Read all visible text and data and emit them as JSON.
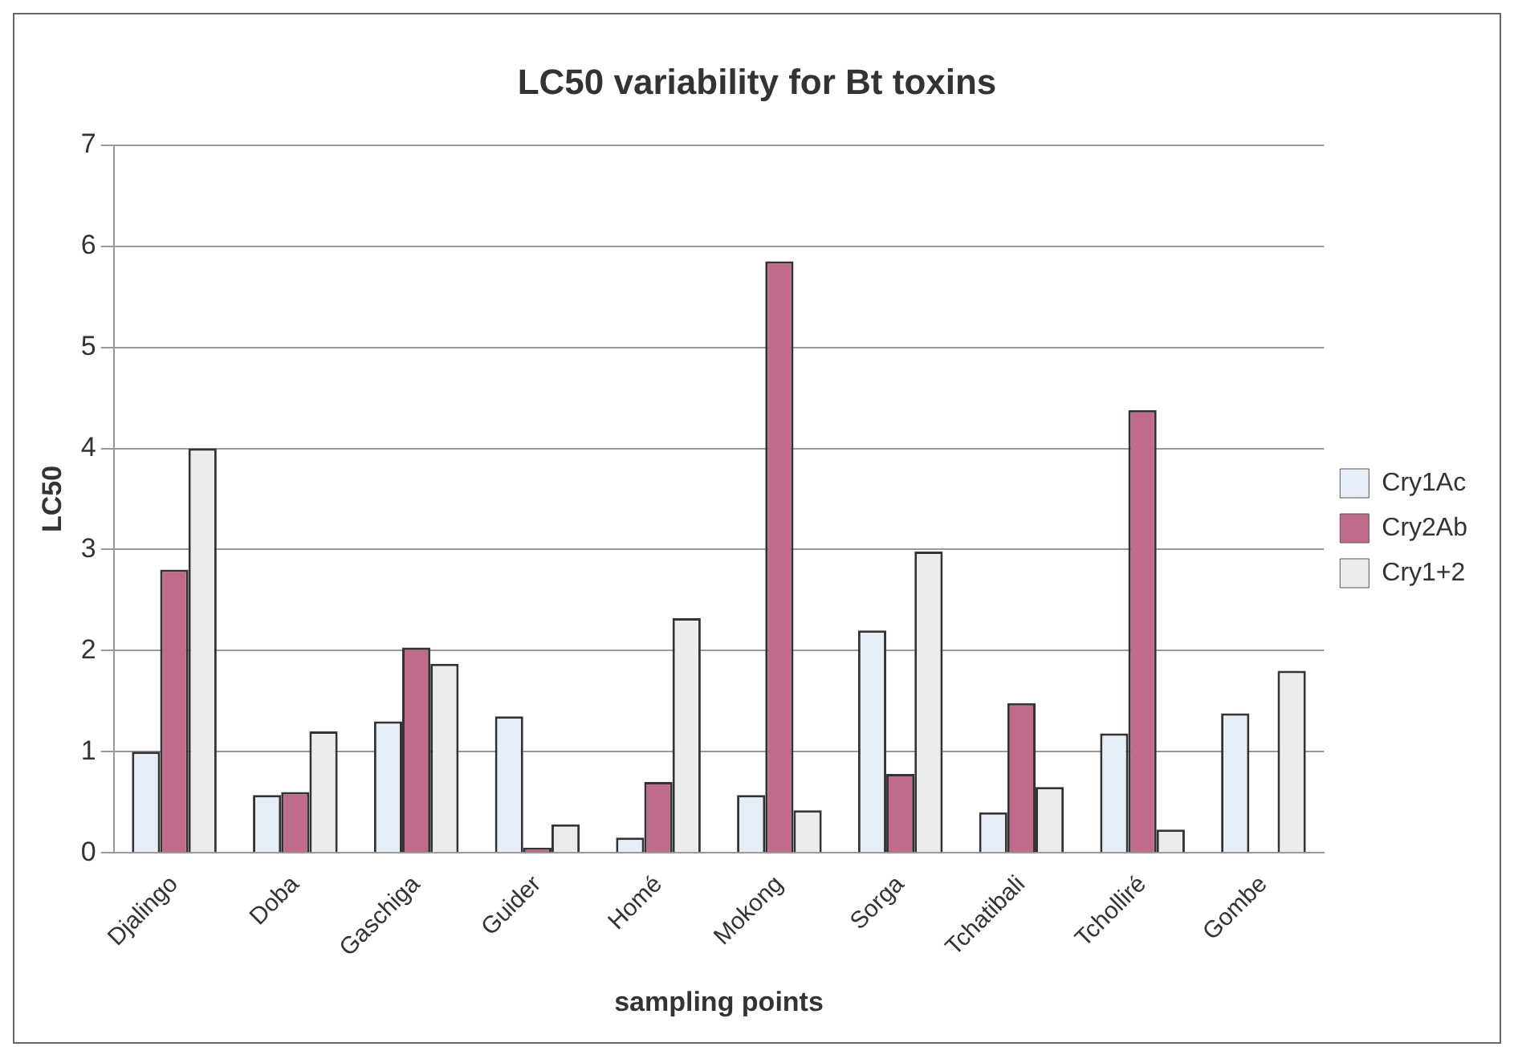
{
  "chart_data": {
    "type": "bar",
    "title": "LC50 variability for Bt toxins",
    "xlabel": "sampling points",
    "ylabel": "LC50",
    "categories": [
      "Djalingo",
      "Doba",
      "Gaschiga",
      "Guider",
      "Homé",
      "Mokong",
      "Sorga",
      "Tchatibali",
      "Tcholliré",
      "Gombe"
    ],
    "series": [
      {
        "name": "Cry1Ac",
        "color": "#e6eef8",
        "values": [
          1.0,
          0.57,
          1.3,
          1.35,
          0.15,
          0.57,
          2.2,
          0.4,
          1.18,
          1.38
        ]
      },
      {
        "name": "Cry2Ab",
        "color": "#c06a8c",
        "values": [
          2.8,
          0.6,
          2.03,
          0.05,
          0.7,
          5.85,
          0.78,
          1.48,
          4.38,
          null
        ]
      },
      {
        "name": "Cry1+2",
        "color": "#ececec",
        "values": [
          4.0,
          1.2,
          1.87,
          0.28,
          2.32,
          0.42,
          2.98,
          0.65,
          0.23,
          1.8
        ]
      }
    ],
    "ylim": [
      0,
      7
    ],
    "yticks": [
      0,
      1,
      2,
      3,
      4,
      5,
      6,
      7
    ],
    "grid": "y",
    "legend": "right"
  }
}
